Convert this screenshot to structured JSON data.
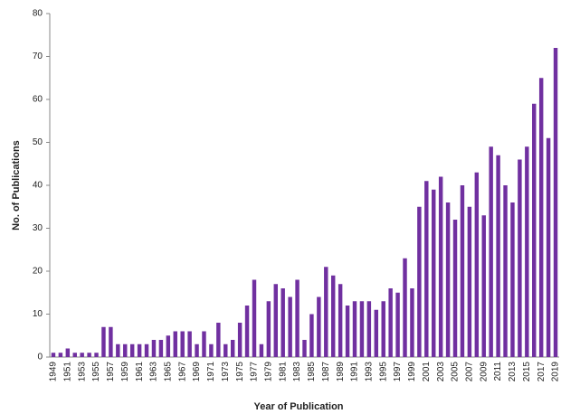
{
  "chart_data": {
    "type": "bar",
    "xlabel": "Year of Publication",
    "ylabel": "No. of Publications",
    "categories": [
      "1949",
      null,
      "1951",
      null,
      "1953",
      null,
      "1955",
      null,
      "1957",
      null,
      "1959",
      null,
      "1961",
      null,
      "1963",
      null,
      "1965",
      null,
      "1967",
      null,
      "1969",
      null,
      "1971",
      null,
      "1973",
      null,
      "1975",
      null,
      "1977",
      null,
      "1979",
      null,
      "1981",
      null,
      "1983",
      null,
      "1985",
      null,
      "1987",
      null,
      "1989",
      null,
      "1991",
      null,
      "1993",
      null,
      "1995",
      null,
      "1997",
      null,
      "1999",
      null,
      "2001",
      null,
      "2003",
      null,
      "2005",
      null,
      "2007",
      null,
      "2009",
      null,
      "2011",
      null,
      "2013",
      null,
      "2015",
      null,
      "2017",
      null,
      "2019"
    ],
    "values": [
      1,
      1,
      2,
      1,
      1,
      1,
      1,
      7,
      7,
      3,
      3,
      3,
      3,
      3,
      4,
      4,
      5,
      6,
      6,
      6,
      3,
      6,
      3,
      8,
      3,
      4,
      8,
      12,
      18,
      3,
      13,
      17,
      16,
      14,
      18,
      4,
      10,
      14,
      21,
      19,
      17,
      12,
      13,
      13,
      13,
      11,
      13,
      16,
      15,
      23,
      16,
      35,
      41,
      39,
      42,
      36,
      32,
      40,
      35,
      43,
      33,
      49,
      47,
      40,
      36,
      46,
      49,
      59,
      65,
      51,
      72
    ],
    "color": "#7030a0",
    "ylim": [
      0,
      80
    ],
    "yticks": [
      0,
      10,
      20,
      30,
      40,
      50,
      60,
      70,
      80
    ],
    "grid": false
  }
}
